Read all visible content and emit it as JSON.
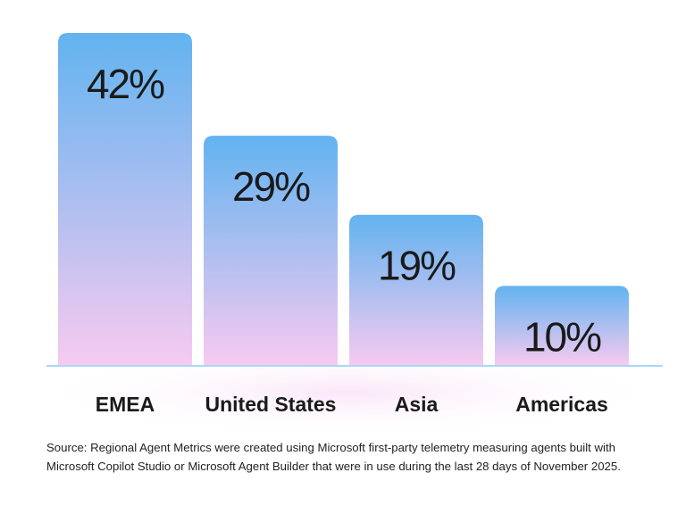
{
  "chart_data": {
    "type": "bar",
    "categories": [
      "EMEA",
      "United States",
      "Asia",
      "Americas"
    ],
    "values": [
      42,
      29,
      19,
      10
    ],
    "value_labels": [
      "42%",
      "29%",
      "19%",
      "10%"
    ],
    "gradient": [
      "#62b3f0",
      "#f7caf0"
    ],
    "source": [
      "Source: Regional Agent Metrics were created using Microsoft first-party telemetry measuring agents built with",
      "Microsoft Copilot Studio or Microsoft Agent Builder that were in use during the last 28 days of November 2025."
    ]
  }
}
